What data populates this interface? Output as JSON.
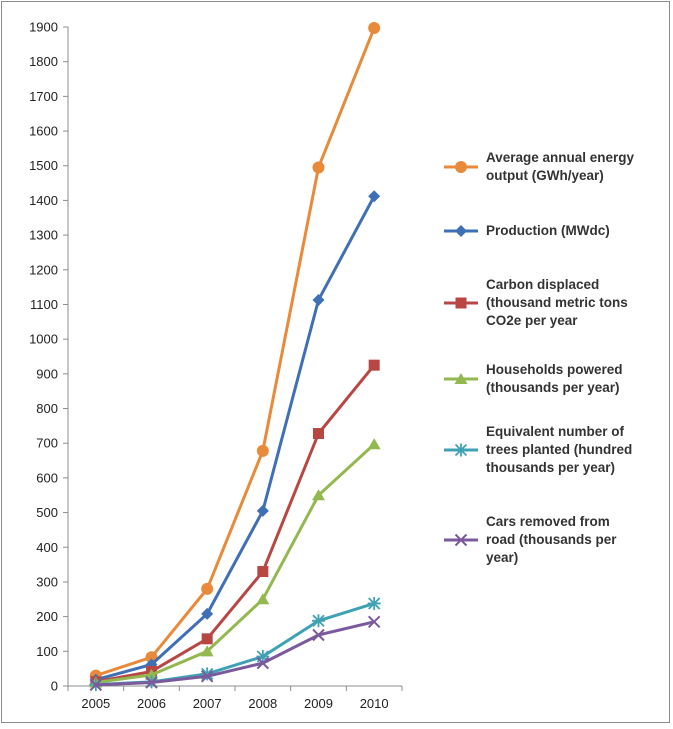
{
  "chart_data": {
    "type": "line",
    "title": "",
    "xlabel": "",
    "ylabel": "",
    "x": [
      "2005",
      "2006",
      "2007",
      "2008",
      "2009",
      "2010"
    ],
    "ylim": [
      0,
      1900
    ],
    "yticks": [
      0,
      100,
      200,
      300,
      400,
      500,
      600,
      700,
      800,
      900,
      1000,
      1100,
      1200,
      1300,
      1400,
      1500,
      1600,
      1700,
      1800,
      1900
    ],
    "grid": false,
    "legend_position": "right",
    "series": [
      {
        "name": "Average annual energy output (GWh/year)",
        "legend_lines": [
          "Average annual energy",
          "output (GWh/year)"
        ],
        "color": "#e98a3a",
        "marker": "circle",
        "values": [
          30,
          83,
          280,
          678,
          1495,
          1897
        ]
      },
      {
        "name": "Production (MWdc)",
        "legend_lines": [
          "Production (MWdc)"
        ],
        "color": "#3f6fb5",
        "marker": "diamond",
        "values": [
          18,
          62,
          208,
          505,
          1113,
          1412
        ]
      },
      {
        "name": "Carbon displaced (thousand metric tons CO2e per year)",
        "legend_lines": [
          "Carbon displaced",
          "(thousand metric tons",
          "CO2e per year"
        ],
        "color": "#b84744",
        "marker": "square",
        "values": [
          12,
          42,
          136,
          330,
          728,
          925
        ]
      },
      {
        "name": "Households powered (thousands per year)",
        "legend_lines": [
          "Households powered",
          "(thousands per year)"
        ],
        "color": "#93b84f",
        "marker": "triangle",
        "values": [
          10,
          32,
          100,
          250,
          550,
          697
        ]
      },
      {
        "name": "Equivalent number of trees planted (hundred thousands per year)",
        "legend_lines": [
          "Equivalent number of",
          "trees planted (hundred",
          "thousands per year)"
        ],
        "color": "#3fa2b4",
        "marker": "asterisk",
        "values": [
          4,
          12,
          35,
          85,
          188,
          238
        ]
      },
      {
        "name": "Cars removed from road (thousands per year)",
        "legend_lines": [
          "Cars removed from",
          "road (thousands per",
          "year)"
        ],
        "color": "#7a5a9c",
        "marker": "x",
        "values": [
          3,
          10,
          28,
          66,
          147,
          185
        ]
      }
    ]
  }
}
